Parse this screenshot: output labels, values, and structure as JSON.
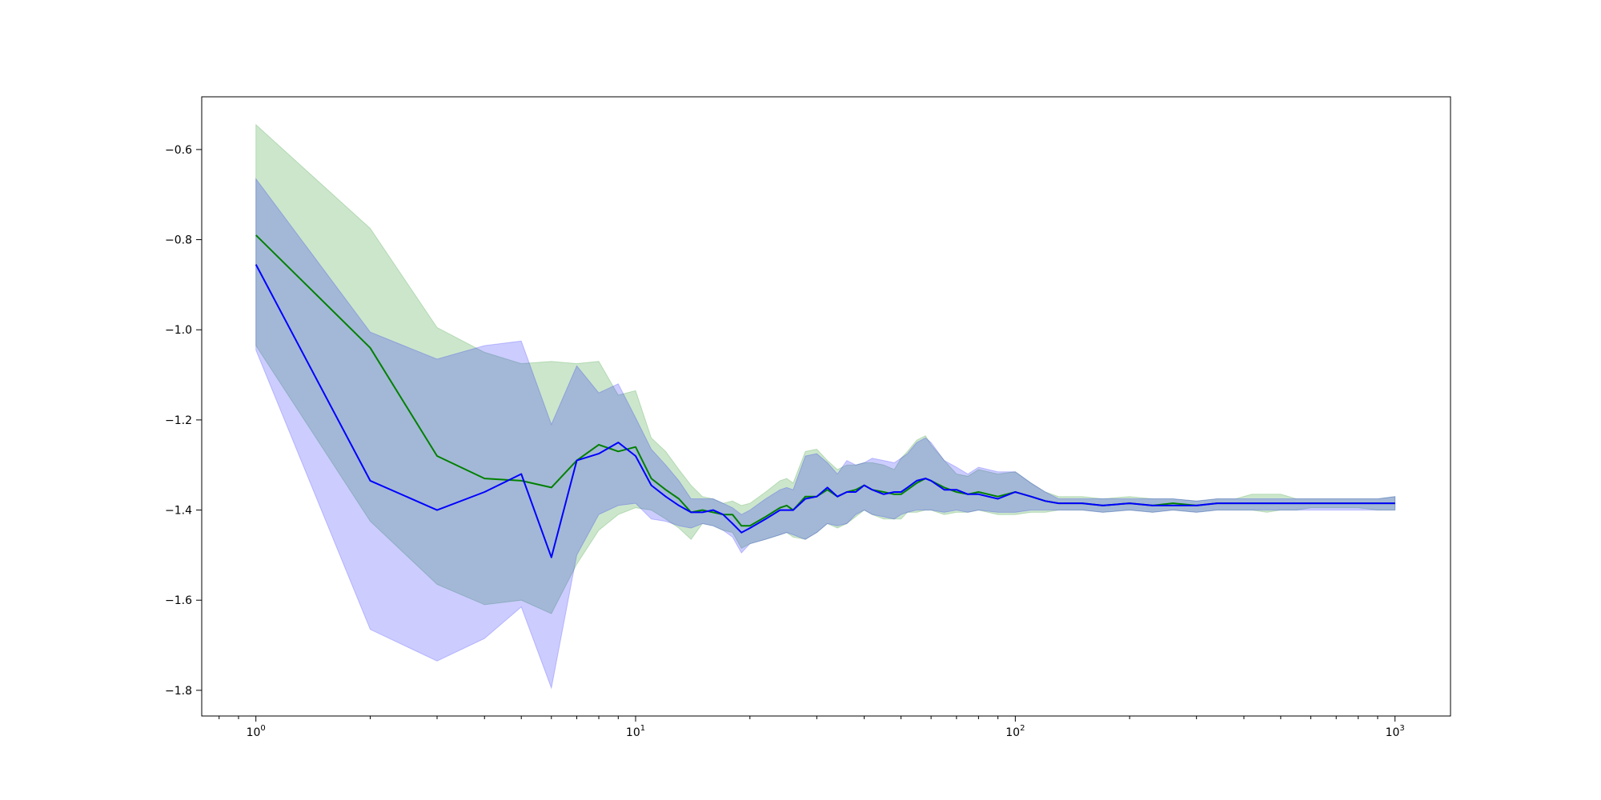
{
  "chart_data": {
    "type": "line",
    "title": "",
    "xlabel": "",
    "ylabel": "",
    "xscale": "log",
    "xlim": [
      0.72,
      1400
    ],
    "ylim": [
      -1.857,
      -0.483
    ],
    "grid": false,
    "legend": "none",
    "x_ticks": [
      {
        "value": 1,
        "base": "10",
        "exp": "0"
      },
      {
        "value": 10,
        "base": "10",
        "exp": "1"
      },
      {
        "value": 100,
        "base": "10",
        "exp": "2"
      },
      {
        "value": 1000,
        "base": "10",
        "exp": "3"
      }
    ],
    "y_ticks": [
      {
        "value": -0.6,
        "label": "−0.6"
      },
      {
        "value": -0.8,
        "label": "−0.8"
      },
      {
        "value": -1.0,
        "label": "−1.0"
      },
      {
        "value": -1.2,
        "label": "−1.2"
      },
      {
        "value": -1.4,
        "label": "−1.4"
      },
      {
        "value": -1.6,
        "label": "−1.6"
      },
      {
        "value": -1.8,
        "label": "−1.8"
      }
    ],
    "series": [
      {
        "color": "#008000",
        "band_color": "#008000",
        "band_opacity": 0.2,
        "x": [
          1,
          2,
          3,
          4,
          5,
          6,
          7,
          8,
          9,
          10,
          11,
          12,
          13,
          14,
          15,
          16,
          17,
          18,
          19,
          20,
          22,
          24,
          25,
          26,
          28,
          30,
          32,
          34,
          36,
          38,
          40,
          42,
          45,
          48,
          50,
          52,
          55,
          58,
          60,
          65,
          70,
          75,
          80,
          90,
          100,
          110,
          120,
          130,
          150,
          170,
          200,
          230,
          260,
          300,
          340,
          380,
          420,
          460,
          500,
          550,
          600,
          700,
          800,
          900,
          1000
        ],
        "mean": [
          -0.79,
          -1.04,
          -1.28,
          -1.33,
          -1.335,
          -1.35,
          -1.29,
          -1.255,
          -1.27,
          -1.26,
          -1.33,
          -1.355,
          -1.375,
          -1.405,
          -1.4,
          -1.405,
          -1.41,
          -1.41,
          -1.435,
          -1.435,
          -1.415,
          -1.395,
          -1.39,
          -1.4,
          -1.37,
          -1.37,
          -1.355,
          -1.37,
          -1.36,
          -1.355,
          -1.345,
          -1.355,
          -1.36,
          -1.365,
          -1.365,
          -1.355,
          -1.34,
          -1.33,
          -1.335,
          -1.35,
          -1.36,
          -1.365,
          -1.36,
          -1.37,
          -1.36,
          -1.37,
          -1.38,
          -1.385,
          -1.385,
          -1.39,
          -1.385,
          -1.39,
          -1.385,
          -1.39,
          -1.385,
          -1.385,
          -1.385,
          -1.385,
          -1.385,
          -1.385,
          -1.385,
          -1.385,
          -1.385,
          -1.385,
          -1.385
        ],
        "upper": [
          -0.545,
          -0.775,
          -0.995,
          -1.05,
          -1.075,
          -1.07,
          -1.075,
          -1.07,
          -1.145,
          -1.135,
          -1.24,
          -1.27,
          -1.31,
          -1.345,
          -1.37,
          -1.375,
          -1.385,
          -1.38,
          -1.39,
          -1.385,
          -1.36,
          -1.335,
          -1.33,
          -1.34,
          -1.27,
          -1.265,
          -1.29,
          -1.31,
          -1.3,
          -1.3,
          -1.295,
          -1.295,
          -1.3,
          -1.31,
          -1.285,
          -1.27,
          -1.245,
          -1.235,
          -1.255,
          -1.29,
          -1.32,
          -1.325,
          -1.31,
          -1.32,
          -1.315,
          -1.34,
          -1.36,
          -1.37,
          -1.37,
          -1.375,
          -1.37,
          -1.375,
          -1.375,
          -1.38,
          -1.375,
          -1.375,
          -1.365,
          -1.365,
          -1.365,
          -1.375,
          -1.375,
          -1.375,
          -1.375,
          -1.375,
          -1.37
        ],
        "lower": [
          -1.035,
          -1.425,
          -1.565,
          -1.61,
          -1.6,
          -1.63,
          -1.52,
          -1.445,
          -1.41,
          -1.395,
          -1.4,
          -1.42,
          -1.44,
          -1.465,
          -1.43,
          -1.435,
          -1.445,
          -1.45,
          -1.485,
          -1.475,
          -1.465,
          -1.455,
          -1.45,
          -1.46,
          -1.465,
          -1.45,
          -1.43,
          -1.44,
          -1.43,
          -1.415,
          -1.4,
          -1.41,
          -1.42,
          -1.42,
          -1.42,
          -1.405,
          -1.405,
          -1.4,
          -1.4,
          -1.41,
          -1.405,
          -1.405,
          -1.4,
          -1.41,
          -1.41,
          -1.405,
          -1.405,
          -1.4,
          -1.4,
          -1.405,
          -1.4,
          -1.405,
          -1.4,
          -1.405,
          -1.4,
          -1.4,
          -1.4,
          -1.405,
          -1.4,
          -1.4,
          -1.395,
          -1.395,
          -1.395,
          -1.4,
          -1.4
        ]
      },
      {
        "color": "#0000ff",
        "band_color": "#0000ff",
        "band_opacity": 0.2,
        "x": [
          1,
          2,
          3,
          4,
          5,
          6,
          7,
          8,
          9,
          10,
          11,
          12,
          13,
          14,
          15,
          16,
          17,
          18,
          19,
          20,
          22,
          24,
          25,
          26,
          28,
          30,
          32,
          34,
          36,
          38,
          40,
          42,
          45,
          48,
          50,
          52,
          55,
          58,
          60,
          65,
          70,
          75,
          80,
          90,
          100,
          110,
          120,
          130,
          150,
          170,
          200,
          230,
          260,
          300,
          340,
          380,
          420,
          460,
          500,
          550,
          600,
          700,
          800,
          900,
          1000
        ],
        "mean": [
          -0.855,
          -1.335,
          -1.4,
          -1.36,
          -1.32,
          -1.505,
          -1.29,
          -1.275,
          -1.25,
          -1.28,
          -1.345,
          -1.37,
          -1.39,
          -1.405,
          -1.405,
          -1.4,
          -1.41,
          -1.43,
          -1.45,
          -1.44,
          -1.42,
          -1.4,
          -1.4,
          -1.4,
          -1.375,
          -1.37,
          -1.35,
          -1.37,
          -1.36,
          -1.36,
          -1.345,
          -1.355,
          -1.365,
          -1.36,
          -1.36,
          -1.35,
          -1.335,
          -1.33,
          -1.335,
          -1.355,
          -1.355,
          -1.365,
          -1.365,
          -1.375,
          -1.36,
          -1.37,
          -1.38,
          -1.385,
          -1.385,
          -1.39,
          -1.385,
          -1.39,
          -1.39,
          -1.39,
          -1.385,
          -1.385,
          -1.385,
          -1.385,
          -1.385,
          -1.385,
          -1.385,
          -1.385,
          -1.385,
          -1.385,
          -1.385
        ],
        "upper": [
          -0.665,
          -1.005,
          -1.065,
          -1.035,
          -1.025,
          -1.21,
          -1.08,
          -1.14,
          -1.12,
          -1.195,
          -1.265,
          -1.3,
          -1.335,
          -1.375,
          -1.375,
          -1.375,
          -1.385,
          -1.395,
          -1.41,
          -1.4,
          -1.375,
          -1.355,
          -1.35,
          -1.355,
          -1.28,
          -1.275,
          -1.295,
          -1.32,
          -1.29,
          -1.3,
          -1.295,
          -1.285,
          -1.29,
          -1.295,
          -1.285,
          -1.275,
          -1.25,
          -1.24,
          -1.25,
          -1.29,
          -1.305,
          -1.32,
          -1.305,
          -1.315,
          -1.315,
          -1.34,
          -1.36,
          -1.375,
          -1.375,
          -1.375,
          -1.375,
          -1.375,
          -1.375,
          -1.38,
          -1.375,
          -1.375,
          -1.375,
          -1.375,
          -1.375,
          -1.375,
          -1.375,
          -1.375,
          -1.375,
          -1.375,
          -1.37
        ],
        "lower": [
          -1.045,
          -1.665,
          -1.735,
          -1.685,
          -1.615,
          -1.795,
          -1.5,
          -1.41,
          -1.39,
          -1.385,
          -1.42,
          -1.425,
          -1.435,
          -1.44,
          -1.43,
          -1.435,
          -1.445,
          -1.46,
          -1.495,
          -1.475,
          -1.465,
          -1.455,
          -1.45,
          -1.455,
          -1.465,
          -1.45,
          -1.43,
          -1.435,
          -1.43,
          -1.41,
          -1.4,
          -1.41,
          -1.415,
          -1.42,
          -1.41,
          -1.405,
          -1.4,
          -1.4,
          -1.4,
          -1.405,
          -1.4,
          -1.405,
          -1.4,
          -1.405,
          -1.405,
          -1.4,
          -1.4,
          -1.4,
          -1.4,
          -1.405,
          -1.4,
          -1.405,
          -1.4,
          -1.405,
          -1.4,
          -1.4,
          -1.4,
          -1.4,
          -1.4,
          -1.4,
          -1.4,
          -1.4,
          -1.4,
          -1.4,
          -1.4
        ]
      }
    ]
  }
}
